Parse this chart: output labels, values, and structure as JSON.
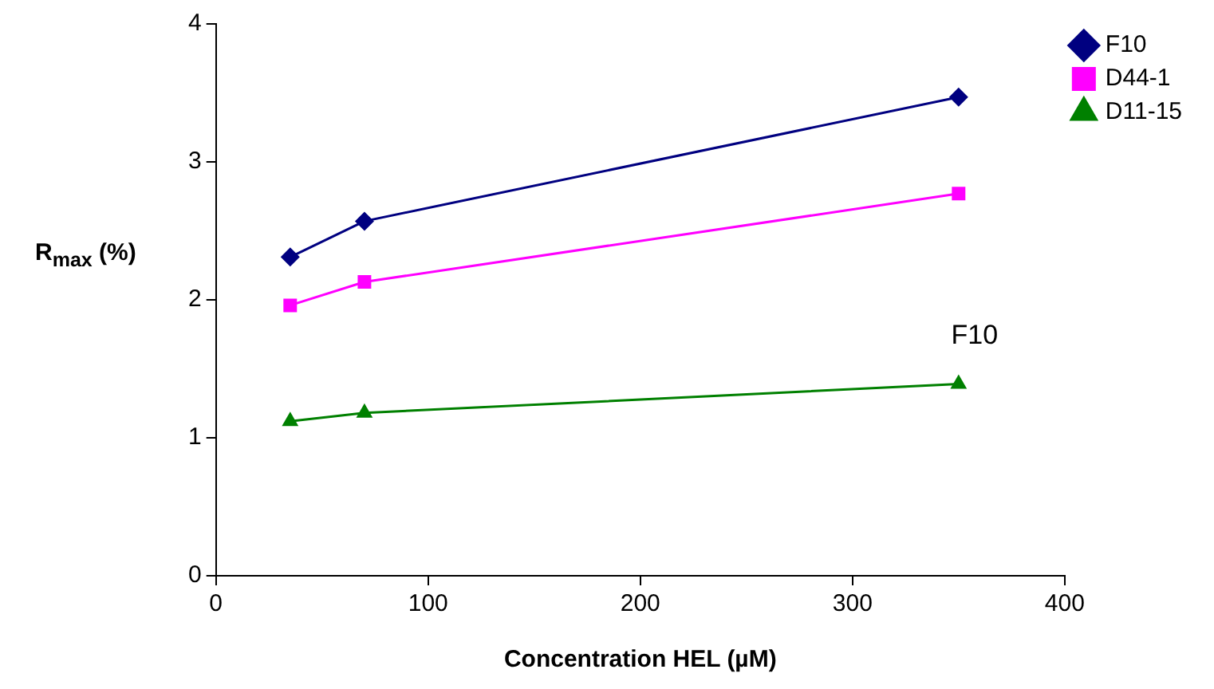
{
  "chart_data": {
    "type": "line",
    "xlabel": "Concentration HEL (µM)",
    "ylabel": "R$_{max}$ (%)",
    "x": [
      35,
      70,
      350
    ],
    "series": [
      {
        "name": "F10",
        "color": "#000080",
        "marker": "diamond",
        "values": [
          2.31,
          2.57,
          3.47
        ]
      },
      {
        "name": "D44-1",
        "color": "#ff00ff",
        "marker": "square",
        "values": [
          1.96,
          2.13,
          2.77
        ]
      },
      {
        "name": "D11-15",
        "color": "#008000",
        "marker": "triangle",
        "values": [
          1.12,
          1.18,
          1.39
        ]
      }
    ],
    "xlim": [
      0,
      400
    ],
    "xticks": [
      0,
      100,
      200,
      300,
      400
    ],
    "ylim": [
      0,
      4
    ],
    "yticks": [
      0,
      1,
      2,
      3,
      4
    ],
    "grid": false,
    "legend": "top right",
    "annotations": [
      "F10"
    ]
  }
}
